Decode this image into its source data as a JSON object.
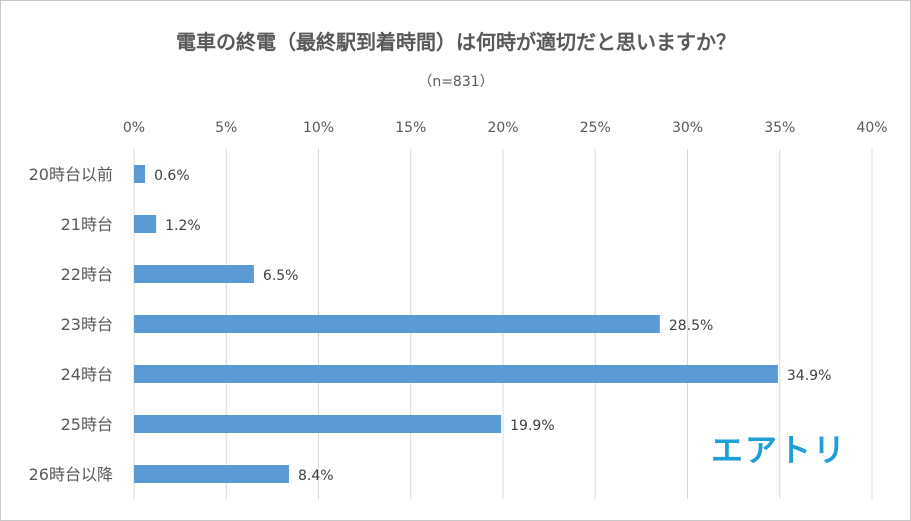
{
  "chart_data": {
    "type": "bar",
    "orientation": "horizontal",
    "title": "電車の終電（最終駅到着時間）は何時が適切だと思いますか？",
    "subtitle": "（n=831）",
    "categories": [
      "20時台以前",
      "21時台",
      "22時台",
      "23時台",
      "24時台",
      "25時台",
      "26時台以降"
    ],
    "values": [
      0.6,
      1.2,
      6.5,
      28.5,
      34.9,
      19.9,
      8.4
    ],
    "value_labels": [
      "0.6%",
      "1.2%",
      "6.5%",
      "28.5%",
      "34.9%",
      "19.9%",
      "8.4%"
    ],
    "xlim": [
      0,
      40
    ],
    "x_ticks": [
      0,
      5,
      10,
      15,
      20,
      25,
      30,
      35,
      40
    ],
    "x_tick_labels": [
      "0%",
      "5%",
      "10%",
      "15%",
      "20%",
      "25%",
      "30%",
      "35%",
      "40%"
    ],
    "axis_position": "top",
    "grid": true,
    "legend": "none",
    "bar_color": "#5b9bd5",
    "grid_color": "#d9d9d9"
  },
  "branding": {
    "logo_text": "エアトリ",
    "logo_color": "#1e9fd8"
  }
}
